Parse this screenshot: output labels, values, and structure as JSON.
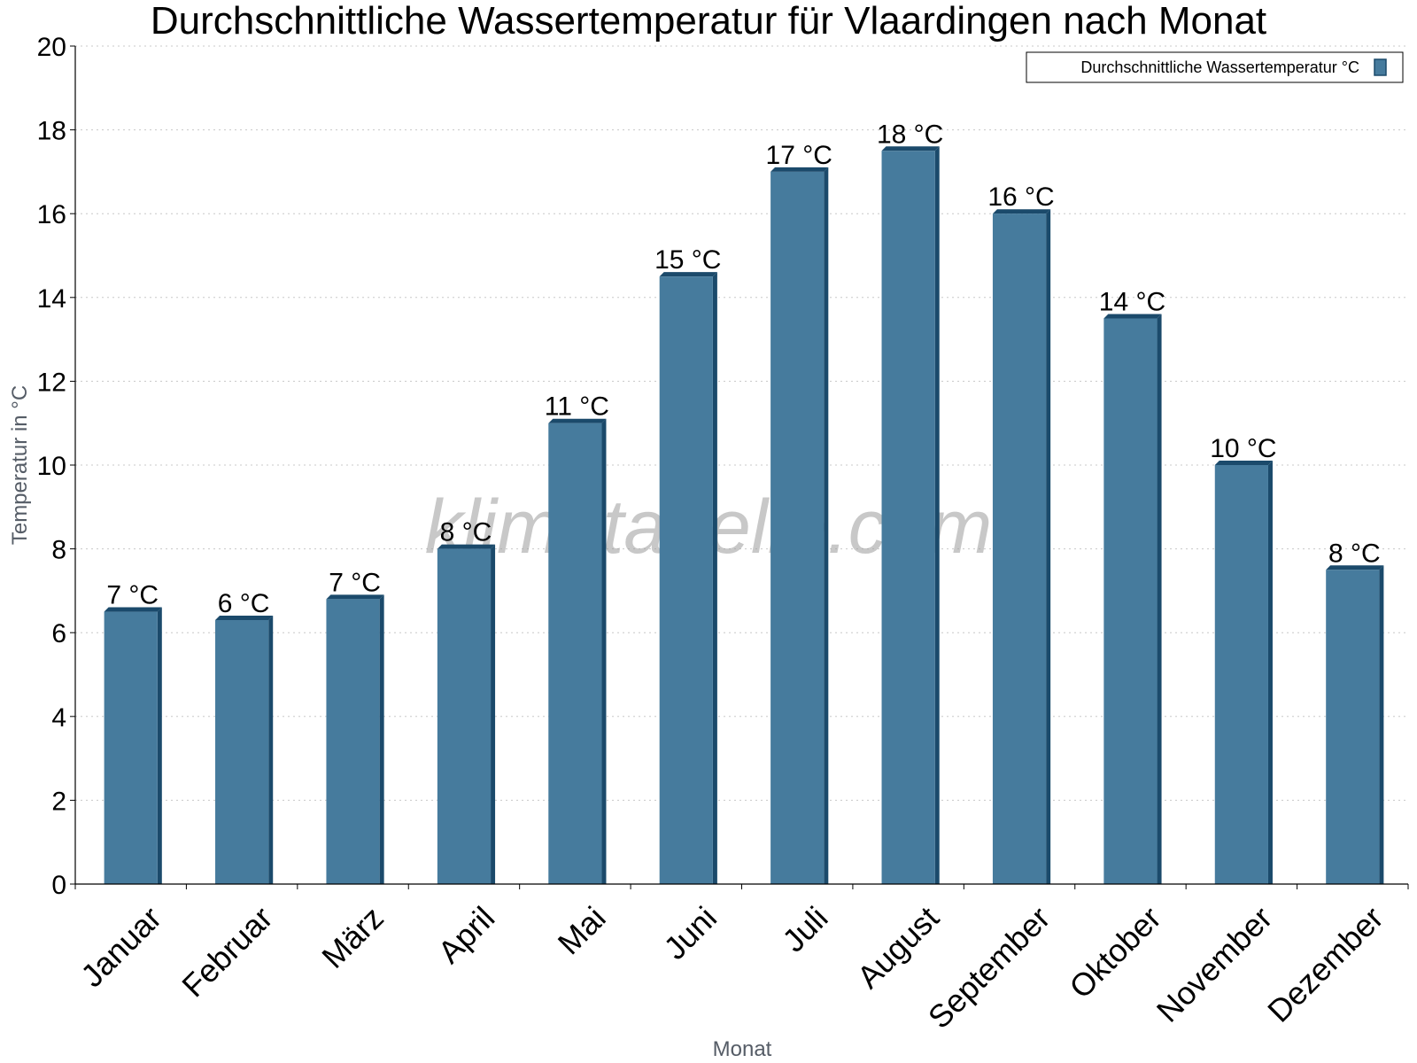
{
  "chart_data": {
    "type": "bar",
    "title": "Durchschnittliche Wassertemperatur für Vlaardingen nach Monat",
    "xlabel": "Monat",
    "ylabel": "Temperatur in °C",
    "ylim": [
      0,
      20
    ],
    "yticks": [
      0,
      2,
      4,
      6,
      8,
      10,
      12,
      14,
      16,
      18,
      20
    ],
    "grid": true,
    "legend_position": "top-right",
    "categories": [
      "Januar",
      "Februar",
      "März",
      "April",
      "Mai",
      "Juni",
      "Juli",
      "August",
      "September",
      "Oktober",
      "November",
      "Dezember"
    ],
    "series": [
      {
        "name": "Durchschnittliche Wassertemperatur °C",
        "color": "#467b9d",
        "values": [
          6.5,
          6.3,
          6.8,
          8.0,
          11.0,
          14.5,
          17.0,
          17.5,
          16.0,
          13.5,
          10.0,
          7.5
        ],
        "labels": [
          "7 °C",
          "6 °C",
          "7 °C",
          "8 °C",
          "11 °C",
          "15 °C",
          "17 °C",
          "18 °C",
          "16 °C",
          "14 °C",
          "10 °C",
          "8 °C"
        ]
      }
    ],
    "watermark": "klimatabelle.com"
  }
}
